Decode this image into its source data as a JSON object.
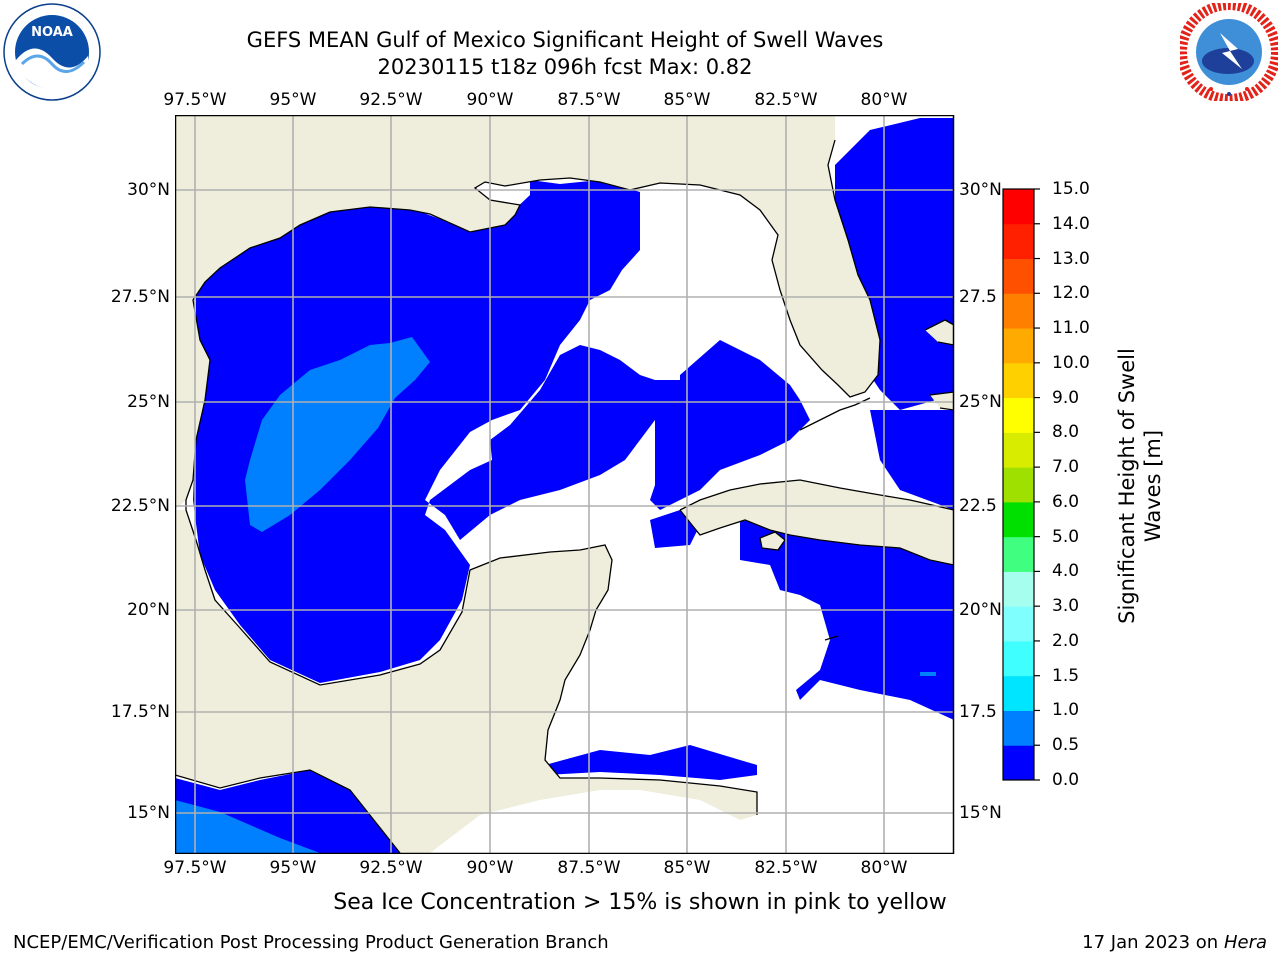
{
  "title": {
    "line1": "GEFS MEAN Gulf of Mexico Significant Height of Swell Waves",
    "line2": "20230115 t18z 096h fcst   Max: 0.82"
  },
  "logos": {
    "left": {
      "name": "NOAA",
      "ring_text": "NATIONAL OCEANIC AND ATMOSPHERIC ADMINISTRATION · U.S. DEPARTMENT OF COMMERCE",
      "color": "#0a4ea8"
    },
    "right": {
      "ring_text": "NATIONAL WEATHER SERVICE",
      "color": "#e2231a"
    }
  },
  "map": {
    "lon_range": [
      -98.0,
      -78.3
    ],
    "lat_range": [
      14.0,
      31.8
    ],
    "lon_ticks": [
      "97.5°W",
      "95°W",
      "92.5°W",
      "90°W",
      "87.5°W",
      "85°W",
      "82.5°W",
      "80°W"
    ],
    "lat_ticks": [
      "30°N",
      "27.5°N",
      "25°N",
      "22.5°N",
      "20°N",
      "17.5°N",
      "15°N"
    ],
    "right_lat_ticks": [
      "30°N",
      "27.5",
      "25°N",
      "22.5",
      "20°N",
      "17.5",
      "15°N"
    ],
    "land_color": "#efeedc",
    "field_low_color": "#0000ff",
    "field_mid_color": "#0080ff",
    "grid_color": "#b0b0b0"
  },
  "colorbar": {
    "label": "Significant Height of Swell Waves [m]",
    "label_lines": [
      "Significant Height of Swell",
      "Waves [m]"
    ],
    "ticks": [
      "15.0",
      "14.0",
      "13.0",
      "12.0",
      "11.0",
      "10.0",
      "9.0",
      "8.0",
      "7.0",
      "6.0",
      "5.0",
      "4.0",
      "3.0",
      "2.0",
      "1.5",
      "1.0",
      "0.5",
      "0.0"
    ],
    "colors_bottom_to_top": [
      "#0000ff",
      "#0080ff",
      "#00e5ff",
      "#40ffff",
      "#80ffff",
      "#a6ffee",
      "#40ff80",
      "#00e000",
      "#40e000",
      "#a0e000",
      "#d8ec00",
      "#e8f000",
      "#ffff00",
      "#ffd000",
      "#ffaa00",
      "#ff8000",
      "#ff5000",
      "#ff2000",
      "#ff0000"
    ]
  },
  "sea_ice_note": "Sea Ice Concentration > 15% is shown in pink to yellow",
  "footer": {
    "left": "NCEP/EMC/Verification Post Processing Product Generation Branch",
    "right_prefix": "17 Jan 2023 on ",
    "right_host": "Hera"
  }
}
